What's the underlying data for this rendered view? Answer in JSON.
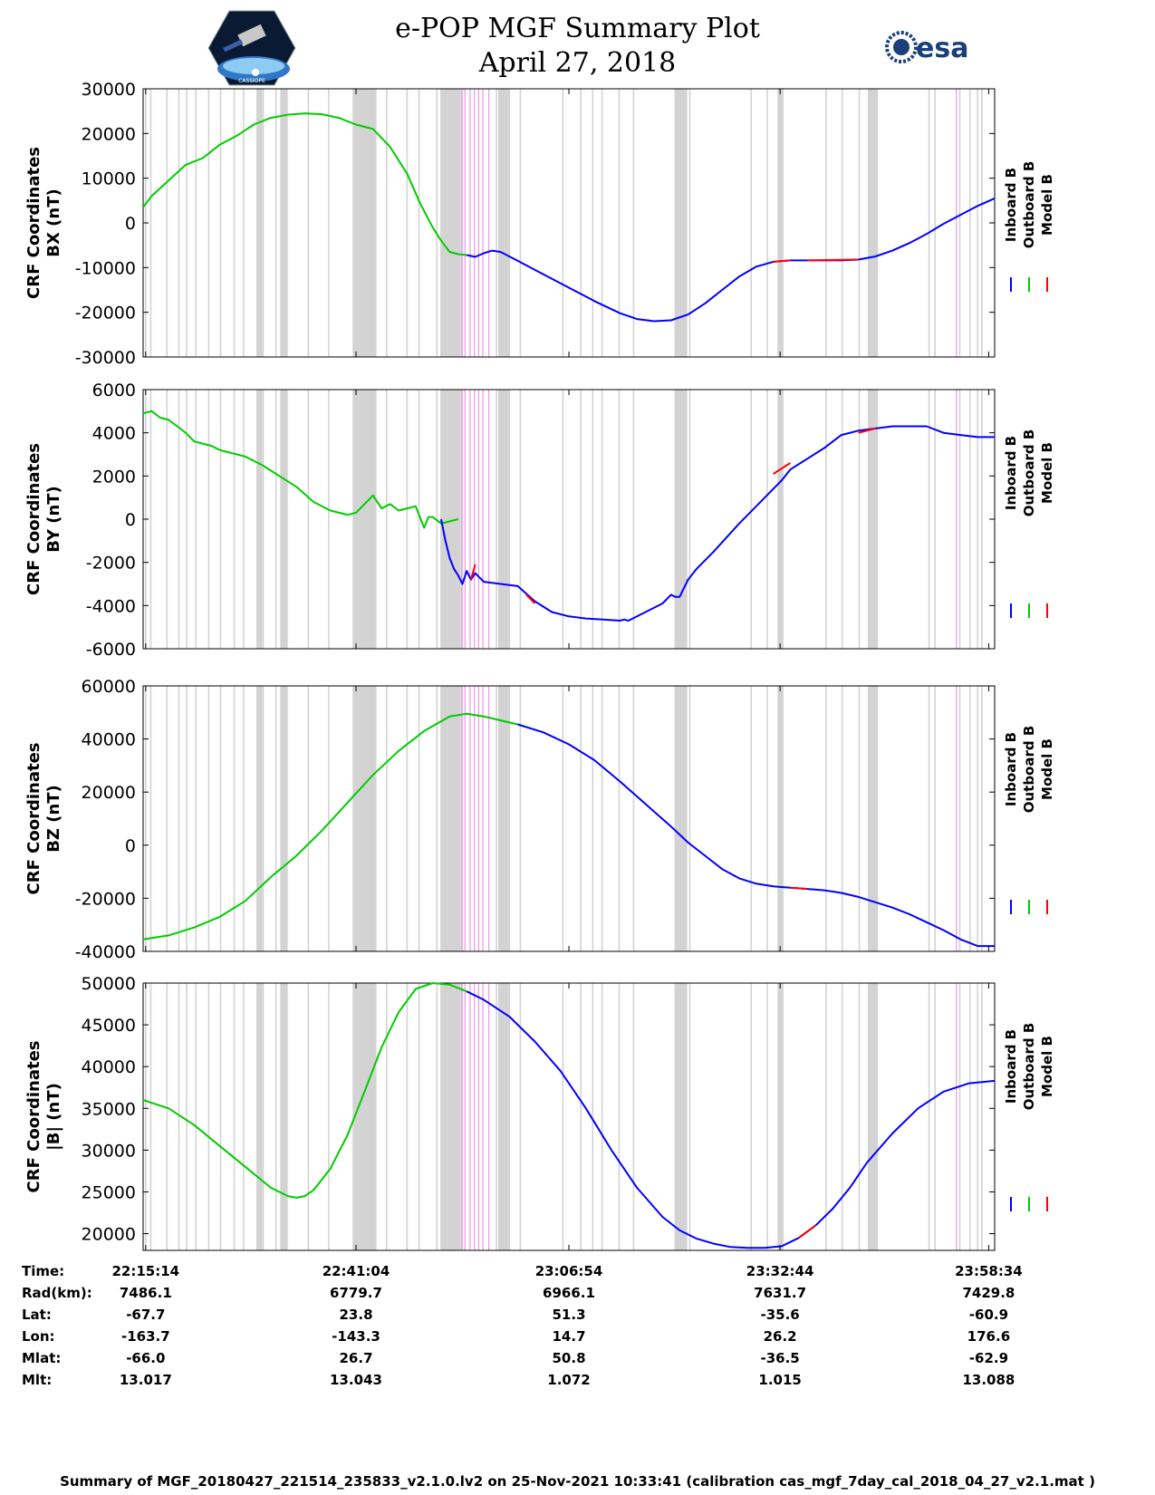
{
  "header": {
    "title_line1": "e-POP MGF Summary Plot",
    "title_line2": "April 27, 2018",
    "logo_left_text": "CASSIOPE",
    "logo_right_text": "esa"
  },
  "colors": {
    "inboard": "#0000ff",
    "outboard": "#00cc00",
    "model": "#ff0000",
    "gap_band": "#d3d3d3",
    "event_line": "#e8a0e8"
  },
  "legend": [
    "Inboard B",
    "Outboard B",
    "Model B"
  ],
  "x_axis": {
    "ticks": [
      "22:15:14",
      "22:41:04",
      "23:06:54",
      "23:32:44",
      "23:58:34"
    ]
  },
  "gaps": {
    "lines": [
      0.3,
      0.9,
      2.8,
      4.2,
      5.1,
      6.2,
      7.7,
      9.1,
      10.7,
      11.8,
      14.1,
      15.6,
      16.9,
      19.4,
      21.8,
      26.8,
      28.6,
      31.0,
      32.4,
      34.5,
      35.6,
      36.3,
      37.5,
      41.5,
      42.3,
      44.3,
      49.3,
      51.4,
      52.8,
      53.9,
      55.9,
      57.6,
      64.2,
      71.4,
      73.3,
      80.2,
      82.1,
      84.1,
      86.1,
      92.3,
      93.0,
      95.9,
      97.1,
      98.0,
      98.5
    ],
    "bands": [
      [
        13.3,
        14.0
      ],
      [
        16.1,
        16.9
      ],
      [
        24.6,
        27.4
      ],
      [
        34.9,
        37.3
      ],
      [
        41.7,
        43.1
      ],
      [
        62.4,
        63.9
      ],
      [
        74.5,
        75.2
      ],
      [
        85.1,
        86.3
      ]
    ],
    "events": [
      37.4,
      37.8,
      38.4,
      38.9,
      39.4,
      39.9,
      40.6,
      95.5
    ]
  },
  "table": {
    "labels": [
      "Time:",
      "Rad(km):",
      "Lat:",
      "Lon:",
      "Mlat:",
      "Mlt:"
    ],
    "columns": [
      {
        "time": "22:15:14",
        "rad": "7486.1",
        "lat": "-67.7",
        "lon": "-163.7",
        "mlat": "-66.0",
        "mlt": "13.017"
      },
      {
        "time": "22:41:04",
        "rad": "6779.7",
        "lat": "23.8",
        "lon": "-143.3",
        "mlat": "26.7",
        "mlt": "13.043"
      },
      {
        "time": "23:06:54",
        "rad": "6966.1",
        "lat": "51.3",
        "lon": "14.7",
        "mlat": "50.8",
        "mlt": "1.072"
      },
      {
        "time": "23:32:44",
        "rad": "7631.7",
        "lat": "-35.6",
        "lon": "26.2",
        "mlat": "-36.5",
        "mlt": "1.015"
      },
      {
        "time": "23:58:34",
        "rad": "7429.8",
        "lat": "-60.9",
        "lon": "176.6",
        "mlat": "-62.9",
        "mlt": "13.088"
      }
    ]
  },
  "footer": "Summary of MGF_20180427_221514_235833_v2.1.0.lv2 on 25-Nov-2021 10:33:41 (calibration cas_mgf_7day_cal_2018_04_27_v2.1.mat )",
  "chart_data": [
    {
      "type": "line",
      "ylabel_line1": "CRF Coordinates",
      "ylabel_line2": "BX (nT)",
      "ylim": [
        -30000,
        30000
      ],
      "yticks": [
        30000,
        20000,
        10000,
        0,
        -10000,
        -20000,
        -30000
      ],
      "series": [
        {
          "name": "Outboard B",
          "x": [
            0,
            1,
            3,
            5,
            7,
            9,
            11,
            13,
            15,
            17,
            19,
            21,
            23,
            25,
            27,
            29,
            31,
            32.5,
            34,
            35,
            36,
            37,
            38
          ],
          "y": [
            3500,
            6000,
            9500,
            13000,
            14500,
            17500,
            19500,
            22000,
            23500,
            24200,
            24500,
            24300,
            23500,
            22000,
            21000,
            17000,
            11000,
            4500,
            -1000,
            -4000,
            -6500,
            -7000,
            -7200
          ]
        },
        {
          "name": "Inboard B",
          "x": [
            38,
            39,
            40,
            41,
            42,
            44,
            47,
            50,
            53,
            56,
            58,
            60,
            62,
            64,
            66,
            68,
            70,
            72,
            74,
            76,
            78,
            80,
            82,
            84,
            86,
            88,
            90,
            92,
            94,
            96,
            98,
            100
          ],
          "y": [
            -7200,
            -7600,
            -6800,
            -6200,
            -6500,
            -8500,
            -11500,
            -14500,
            -17500,
            -20200,
            -21500,
            -22000,
            -21800,
            -20500,
            -18000,
            -15000,
            -12000,
            -9800,
            -8700,
            -8400,
            -8400,
            -8400,
            -8400,
            -8200,
            -7500,
            -6200,
            -4500,
            -2500,
            -200,
            1800,
            3800,
            5500
          ]
        },
        {
          "name": "Model B",
          "x": [
            74,
            76,
            78,
            84,
            86
          ],
          "y": [
            -8700,
            -8400,
            -8400,
            -8200,
            -7500
          ]
        }
      ]
    },
    {
      "type": "line",
      "ylabel_line1": "CRF Coordinates",
      "ylabel_line2": "BY (nT)",
      "ylim": [
        -6000,
        6000
      ],
      "yticks": [
        6000,
        4000,
        2000,
        0,
        -2000,
        -4000,
        -6000
      ],
      "series": [
        {
          "name": "Outboard B",
          "x": [
            0,
            1,
            2,
            3,
            4,
            5,
            6,
            7,
            8,
            9,
            10,
            11,
            12,
            14,
            16,
            18,
            20,
            22,
            24,
            25,
            26,
            27,
            28,
            29,
            30,
            31,
            32,
            33,
            33.5,
            34,
            35,
            36,
            37
          ],
          "y": [
            4900,
            5000,
            4700,
            4600,
            4300,
            4000,
            3600,
            3500,
            3400,
            3200,
            3100,
            3000,
            2900,
            2500,
            2000,
            1500,
            800,
            400,
            200,
            300,
            700,
            1100,
            500,
            700,
            400,
            500,
            600,
            -400,
            100,
            100,
            -200,
            -100,
            0
          ]
        },
        {
          "name": "Inboard B",
          "x": [
            35,
            35.5,
            36,
            36.5,
            37,
            37.5,
            38,
            38.5,
            39,
            40,
            42,
            44,
            46,
            48,
            50,
            52,
            54,
            56,
            56.5,
            57,
            59,
            61,
            62,
            62.5,
            63,
            64,
            65,
            67,
            70,
            73,
            75,
            76,
            78,
            80,
            81,
            82,
            84,
            86,
            88,
            90,
            92,
            94,
            96,
            98,
            100
          ],
          "y": [
            0,
            -1000,
            -1800,
            -2300,
            -2600,
            -3000,
            -2400,
            -2800,
            -2500,
            -2900,
            -3000,
            -3100,
            -3800,
            -4300,
            -4500,
            -4600,
            -4650,
            -4700,
            -4650,
            -4700,
            -4300,
            -3900,
            -3500,
            -3600,
            -3600,
            -2800,
            -2300,
            -1500,
            -200,
            1000,
            1800,
            2300,
            2800,
            3300,
            3600,
            3900,
            4100,
            4200,
            4300,
            4300,
            4300,
            4000,
            3900,
            3800,
            3800
          ]
        },
        {
          "name": "Model B",
          "x": [
            38.5,
            39,
            45,
            46,
            74,
            76,
            84,
            86
          ],
          "y": [
            -2800,
            -2100,
            -3500,
            -3900,
            2100,
            2600,
            4000,
            4200
          ]
        }
      ]
    },
    {
      "type": "line",
      "ylabel_line1": "CRF Coordinates",
      "ylabel_line2": "BZ (nT)",
      "ylim": [
        -40000,
        60000
      ],
      "yticks": [
        60000,
        40000,
        20000,
        0,
        -20000,
        -40000
      ],
      "series": [
        {
          "name": "Outboard B",
          "x": [
            0,
            3,
            6,
            9,
            12,
            15,
            18,
            21,
            24,
            27,
            30,
            33,
            36,
            38,
            40,
            42,
            44
          ],
          "y": [
            -35500,
            -34000,
            -31000,
            -27000,
            -21000,
            -12000,
            -4000,
            5500,
            16000,
            26500,
            35500,
            43000,
            48500,
            49500,
            48500,
            47000,
            45500
          ]
        },
        {
          "name": "Inboard B",
          "x": [
            44,
            47,
            50,
            53,
            56,
            59,
            62,
            64,
            66,
            68,
            70,
            72,
            74,
            76,
            78,
            80,
            82,
            84,
            86,
            88,
            90,
            92,
            94,
            96,
            98,
            100
          ],
          "y": [
            45500,
            42500,
            38000,
            32000,
            24000,
            15500,
            7000,
            1000,
            -4000,
            -9000,
            -12500,
            -14500,
            -15500,
            -16000,
            -16500,
            -17000,
            -18000,
            -19500,
            -21500,
            -23500,
            -26000,
            -29000,
            -32000,
            -35500,
            -38000,
            -38000
          ]
        },
        {
          "name": "Model B",
          "x": [
            76,
            78
          ],
          "y": [
            -16000,
            -16500
          ]
        }
      ]
    },
    {
      "type": "line",
      "ylabel_line1": "CRF Coordinates",
      "ylabel_line2": "|B| (nT)",
      "ylim": [
        18000,
        50000
      ],
      "yticks": [
        50000,
        45000,
        40000,
        35000,
        30000,
        25000,
        20000
      ],
      "series": [
        {
          "name": "Outboard B",
          "x": [
            0,
            3,
            6,
            9,
            12,
            15,
            17,
            18,
            19,
            20,
            22,
            24,
            26,
            28,
            30,
            32,
            34,
            36,
            37,
            38
          ],
          "y": [
            36000,
            35000,
            33000,
            30500,
            28000,
            25500,
            24500,
            24300,
            24500,
            25200,
            27800,
            31800,
            37000,
            42300,
            46500,
            49300,
            50000,
            49800,
            49400,
            49000
          ]
        },
        {
          "name": "Inboard B",
          "x": [
            38,
            40,
            43,
            46,
            49,
            52,
            55,
            58,
            61,
            63,
            65,
            67,
            69,
            71,
            73,
            75,
            77,
            79,
            81,
            83,
            85,
            88,
            91,
            94,
            97,
            100
          ],
          "y": [
            49000,
            48000,
            46000,
            43000,
            39500,
            35000,
            30000,
            25500,
            22000,
            20400,
            19400,
            18800,
            18400,
            18300,
            18300,
            18500,
            19500,
            21000,
            23000,
            25500,
            28500,
            32000,
            35000,
            37000,
            38000,
            38300
          ]
        },
        {
          "name": "Model B",
          "x": [
            77,
            79,
            81
          ],
          "y": [
            19500,
            21000,
            23000
          ]
        }
      ]
    }
  ]
}
